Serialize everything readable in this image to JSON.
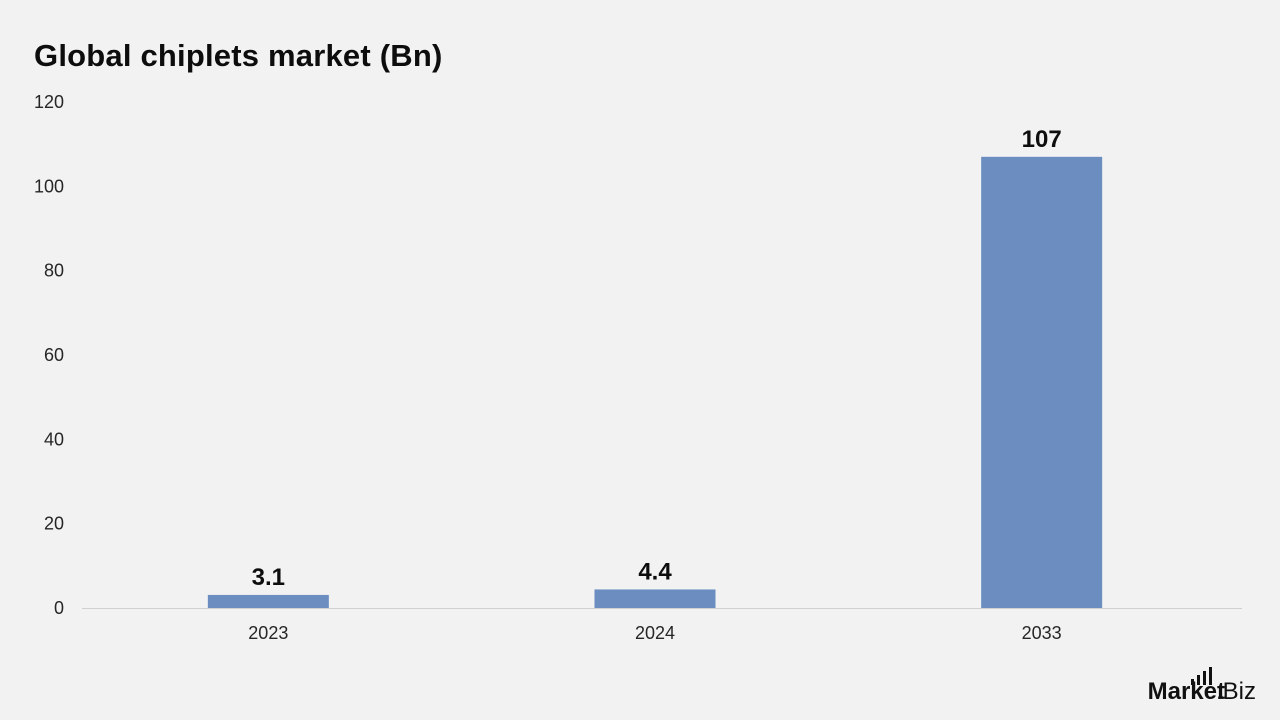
{
  "chart_data": {
    "type": "bar",
    "title": "Global chiplets market (Bn)",
    "categories": [
      "2023",
      "2024",
      "2033"
    ],
    "values": [
      3.1,
      4.4,
      107
    ],
    "data_labels": [
      "3.1",
      "4.4",
      "107"
    ],
    "xlabel": "",
    "ylabel": "",
    "ylim": [
      0,
      120
    ],
    "yticks": [
      0,
      20,
      40,
      60,
      80,
      100,
      120
    ],
    "grid": false,
    "legend": "none",
    "bar_color": "#6b8dc0"
  },
  "brand": {
    "name": "Market",
    "suffix": ".Biz"
  }
}
